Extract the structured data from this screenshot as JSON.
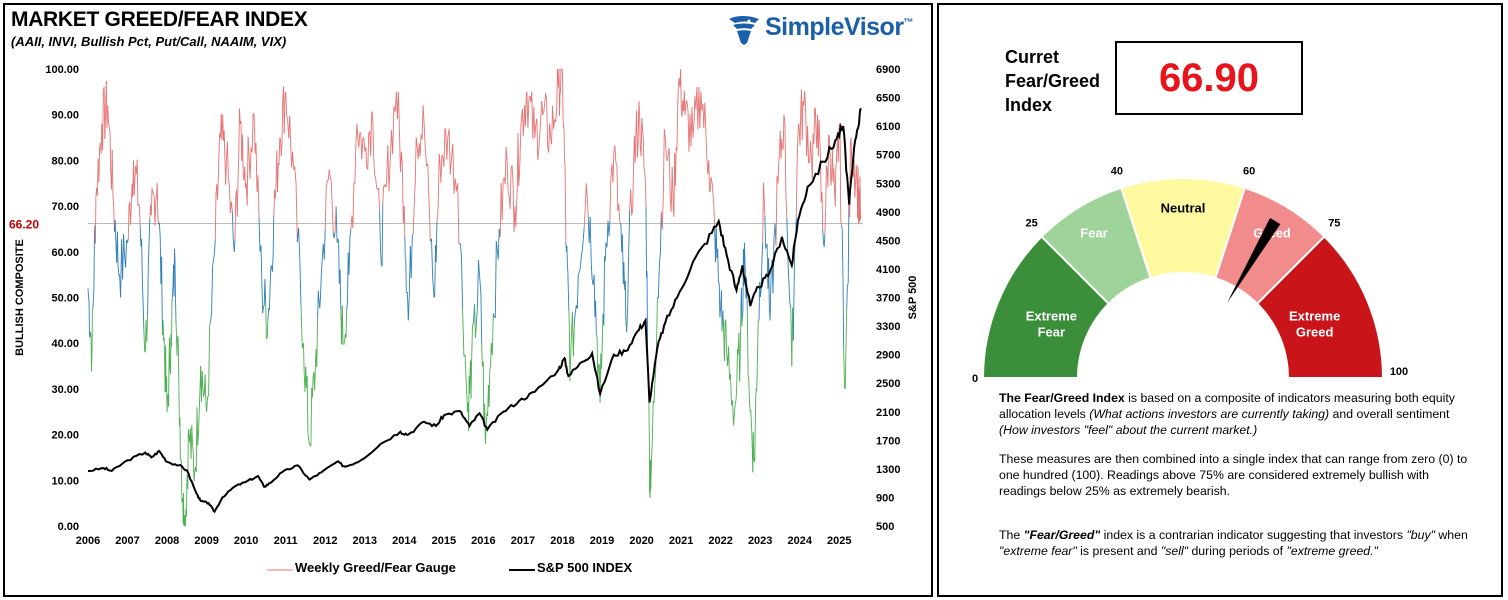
{
  "header": {
    "title": "MARKET GREED/FEAR INDEX",
    "subtitle": "(AAII, INVI, Bullish Pct, Put/Call, NAAIM, VIX)"
  },
  "logo": {
    "text": "SimpleVisor",
    "tm": "™"
  },
  "colors": {
    "greed_line": "#e57373",
    "neutral_line": "#2e7fb8",
    "fear_line": "#4caf50",
    "sp500": "#000000",
    "threshold": "#bbbbbb",
    "threshold_label": "#c00000"
  },
  "chart_data": {
    "type": "line",
    "xlabel": "",
    "ylabel": "BULLISH COMPOSITE",
    "y2label": "S&P 500",
    "ylim": [
      0,
      100
    ],
    "y2lim": [
      500,
      6900
    ],
    "x_ticks": [
      "2006",
      "2007",
      "2008",
      "2009",
      "2010",
      "2011",
      "2012",
      "2013",
      "2014",
      "2015",
      "2016",
      "2017",
      "2018",
      "2019",
      "2020",
      "2021",
      "2022",
      "2023",
      "2024",
      "2025"
    ],
    "y_ticks": [
      "0.00",
      "10.00",
      "20.00",
      "30.00",
      "40.00",
      "50.00",
      "60.00",
      "70.00",
      "80.00",
      "90.00",
      "100.00"
    ],
    "y2_ticks": [
      "500",
      "900",
      "1300",
      "1700",
      "2100",
      "2500",
      "2900",
      "3300",
      "3700",
      "4100",
      "4500",
      "4900",
      "5300",
      "5700",
      "6100",
      "6500",
      "6900"
    ],
    "threshold": {
      "value": 66.2,
      "label": "66.20"
    },
    "series": [
      {
        "name": "Weekly Greed/Fear Gauge",
        "axis": "left",
        "points": [
          [
            2006.0,
            52
          ],
          [
            2006.1,
            38
          ],
          [
            2006.2,
            72
          ],
          [
            2006.35,
            88
          ],
          [
            2006.5,
            92
          ],
          [
            2006.65,
            70
          ],
          [
            2006.8,
            55
          ],
          [
            2007.0,
            62
          ],
          [
            2007.15,
            80
          ],
          [
            2007.3,
            70
          ],
          [
            2007.45,
            38
          ],
          [
            2007.6,
            68
          ],
          [
            2007.75,
            75
          ],
          [
            2007.9,
            45
          ],
          [
            2008.0,
            25
          ],
          [
            2008.1,
            42
          ],
          [
            2008.2,
            58
          ],
          [
            2008.3,
            30
          ],
          [
            2008.4,
            5
          ],
          [
            2008.45,
            0
          ],
          [
            2008.55,
            20
          ],
          [
            2008.7,
            12
          ],
          [
            2008.85,
            35
          ],
          [
            2009.0,
            25
          ],
          [
            2009.2,
            60
          ],
          [
            2009.35,
            85
          ],
          [
            2009.5,
            80
          ],
          [
            2009.7,
            60
          ],
          [
            2009.85,
            88
          ],
          [
            2010.0,
            75
          ],
          [
            2010.2,
            90
          ],
          [
            2010.4,
            52
          ],
          [
            2010.55,
            45
          ],
          [
            2010.7,
            68
          ],
          [
            2010.85,
            85
          ],
          [
            2011.0,
            95
          ],
          [
            2011.2,
            78
          ],
          [
            2011.45,
            40
          ],
          [
            2011.6,
            18
          ],
          [
            2011.75,
            35
          ],
          [
            2011.9,
            55
          ],
          [
            2012.1,
            78
          ],
          [
            2012.3,
            62
          ],
          [
            2012.45,
            40
          ],
          [
            2012.6,
            55
          ],
          [
            2012.8,
            88
          ],
          [
            2013.0,
            82
          ],
          [
            2013.2,
            90
          ],
          [
            2013.4,
            60
          ],
          [
            2013.55,
            75
          ],
          [
            2013.8,
            95
          ],
          [
            2014.0,
            70
          ],
          [
            2014.1,
            45
          ],
          [
            2014.3,
            85
          ],
          [
            2014.5,
            88
          ],
          [
            2014.75,
            50
          ],
          [
            2014.9,
            80
          ],
          [
            2015.1,
            85
          ],
          [
            2015.35,
            75
          ],
          [
            2015.6,
            25
          ],
          [
            2015.7,
            35
          ],
          [
            2015.9,
            55
          ],
          [
            2016.05,
            18
          ],
          [
            2016.2,
            40
          ],
          [
            2016.4,
            65
          ],
          [
            2016.6,
            80
          ],
          [
            2016.8,
            70
          ],
          [
            2016.95,
            88
          ],
          [
            2017.1,
            95
          ],
          [
            2017.3,
            85
          ],
          [
            2017.5,
            90
          ],
          [
            2017.7,
            85
          ],
          [
            2017.9,
            96
          ],
          [
            2018.0,
            99
          ],
          [
            2018.1,
            60
          ],
          [
            2018.2,
            35
          ],
          [
            2018.4,
            55
          ],
          [
            2018.6,
            75
          ],
          [
            2018.8,
            55
          ],
          [
            2018.95,
            27
          ],
          [
            2019.1,
            62
          ],
          [
            2019.3,
            82
          ],
          [
            2019.5,
            60
          ],
          [
            2019.6,
            45
          ],
          [
            2019.8,
            80
          ],
          [
            2019.95,
            90
          ],
          [
            2020.1,
            75
          ],
          [
            2020.2,
            15
          ],
          [
            2020.23,
            8
          ],
          [
            2020.4,
            50
          ],
          [
            2020.6,
            85
          ],
          [
            2020.8,
            70
          ],
          [
            2020.95,
            98
          ],
          [
            2021.1,
            90
          ],
          [
            2021.3,
            85
          ],
          [
            2021.5,
            95
          ],
          [
            2021.7,
            80
          ],
          [
            2021.85,
            65
          ],
          [
            2022.0,
            48
          ],
          [
            2022.15,
            38
          ],
          [
            2022.35,
            25
          ],
          [
            2022.5,
            40
          ],
          [
            2022.6,
            62
          ],
          [
            2022.75,
            25
          ],
          [
            2022.85,
            14
          ],
          [
            2022.95,
            45
          ],
          [
            2023.1,
            72
          ],
          [
            2023.25,
            45
          ],
          [
            2023.45,
            75
          ],
          [
            2023.6,
            90
          ],
          [
            2023.8,
            35
          ],
          [
            2023.95,
            85
          ],
          [
            2024.1,
            92
          ],
          [
            2024.3,
            80
          ],
          [
            2024.45,
            90
          ],
          [
            2024.6,
            62
          ],
          [
            2024.75,
            85
          ],
          [
            2024.9,
            70
          ],
          [
            2025.0,
            88
          ],
          [
            2025.15,
            30
          ],
          [
            2025.3,
            85
          ],
          [
            2025.45,
            75
          ],
          [
            2025.55,
            68
          ]
        ]
      },
      {
        "name": "S&P 500 INDEX",
        "axis": "right",
        "points": [
          [
            2006.0,
            1270
          ],
          [
            2006.4,
            1310
          ],
          [
            2006.6,
            1270
          ],
          [
            2007.0,
            1420
          ],
          [
            2007.45,
            1530
          ],
          [
            2007.6,
            1460
          ],
          [
            2007.8,
            1550
          ],
          [
            2008.0,
            1400
          ],
          [
            2008.3,
            1350
          ],
          [
            2008.5,
            1280
          ],
          [
            2008.75,
            950
          ],
          [
            2008.85,
            850
          ],
          [
            2009.05,
            820
          ],
          [
            2009.2,
            700
          ],
          [
            2009.4,
            900
          ],
          [
            2009.7,
            1050
          ],
          [
            2010.0,
            1120
          ],
          [
            2010.3,
            1200
          ],
          [
            2010.45,
            1050
          ],
          [
            2010.6,
            1100
          ],
          [
            2010.9,
            1250
          ],
          [
            2011.3,
            1350
          ],
          [
            2011.6,
            1150
          ],
          [
            2011.9,
            1250
          ],
          [
            2012.3,
            1400
          ],
          [
            2012.5,
            1330
          ],
          [
            2012.9,
            1420
          ],
          [
            2013.4,
            1650
          ],
          [
            2013.9,
            1820
          ],
          [
            2014.1,
            1780
          ],
          [
            2014.5,
            1960
          ],
          [
            2014.8,
            1900
          ],
          [
            2015.0,
            2050
          ],
          [
            2015.4,
            2110
          ],
          [
            2015.65,
            1900
          ],
          [
            2015.9,
            2080
          ],
          [
            2016.1,
            1850
          ],
          [
            2016.5,
            2100
          ],
          [
            2016.9,
            2250
          ],
          [
            2017.3,
            2380
          ],
          [
            2017.9,
            2690
          ],
          [
            2018.05,
            2850
          ],
          [
            2018.15,
            2600
          ],
          [
            2018.5,
            2800
          ],
          [
            2018.75,
            2920
          ],
          [
            2018.95,
            2350
          ],
          [
            2019.3,
            2900
          ],
          [
            2019.6,
            2950
          ],
          [
            2019.9,
            3230
          ],
          [
            2020.1,
            3380
          ],
          [
            2020.2,
            2230
          ],
          [
            2020.4,
            3000
          ],
          [
            2020.6,
            3350
          ],
          [
            2020.9,
            3700
          ],
          [
            2021.3,
            4200
          ],
          [
            2021.6,
            4450
          ],
          [
            2021.95,
            4770
          ],
          [
            2022.15,
            4300
          ],
          [
            2022.4,
            3800
          ],
          [
            2022.55,
            4150
          ],
          [
            2022.75,
            3580
          ],
          [
            2022.95,
            3850
          ],
          [
            2023.2,
            4000
          ],
          [
            2023.55,
            4550
          ],
          [
            2023.8,
            4150
          ],
          [
            2023.95,
            4770
          ],
          [
            2024.2,
            5250
          ],
          [
            2024.6,
            5600
          ],
          [
            2024.9,
            5900
          ],
          [
            2025.1,
            6100
          ],
          [
            2025.25,
            5000
          ],
          [
            2025.4,
            5900
          ],
          [
            2025.55,
            6350
          ]
        ]
      }
    ],
    "legend_position": "bottom"
  },
  "legend": {
    "greed": "Weekly Greed/Fear Gauge",
    "sp500": "S&P 500 INDEX"
  },
  "gauge": {
    "label_lines": [
      "Curret",
      "Fear/Greed",
      "Index"
    ],
    "value": 66.9,
    "value_text": "66.90",
    "ticks": [
      "0",
      "25",
      "40",
      "60",
      "75",
      "100"
    ],
    "segments": [
      {
        "label_lines": [
          "Extreme",
          "Fear"
        ],
        "from": 0,
        "to": 25,
        "color": "#3b8f3b",
        "text_color": "#ffffff"
      },
      {
        "label_lines": [
          "Fear"
        ],
        "from": 25,
        "to": 40,
        "color": "#9ed49a",
        "text_color": "#ffffff"
      },
      {
        "label_lines": [
          "Neutral"
        ],
        "from": 40,
        "to": 60,
        "color": "#fffaa0",
        "text_color": "#000000"
      },
      {
        "label_lines": [
          "Greed"
        ],
        "from": 60,
        "to": 75,
        "color": "#f28b8b",
        "text_color": "#ffffff"
      },
      {
        "label_lines": [
          "Extreme",
          "Greed"
        ],
        "from": 75,
        "to": 100,
        "color": "#c91419",
        "text_color": "#ffffff"
      }
    ]
  },
  "description": {
    "p1_bold": "The Fear/Greed Index",
    "p1_a": " is based on a composite of indicators measuring both equity allocation levels ",
    "p1_i1": "(What actions investors are currently taking)",
    "p1_b": " and overall sentiment ",
    "p1_i2": "(How investors \"feel\" about the current market.)",
    "p2": "These measures are then combined into a single index that can range from zero (0) to one hundred (100). Readings above 75% are considered extremely bullish with readings below 25% as extremely bearish.",
    "p3_a": "The ",
    "p3_bi": "\"Fear/Greed\"",
    "p3_b": " index is a contrarian indicator suggesting that investors ",
    "p3_i1": "\"buy\"",
    "p3_c": " when ",
    "p3_i2": "\"extreme fear\"",
    "p3_d": " is present and ",
    "p3_i3": "\"sell\"",
    "p3_e": " during periods of ",
    "p3_i4": "\"extreme greed.\""
  }
}
